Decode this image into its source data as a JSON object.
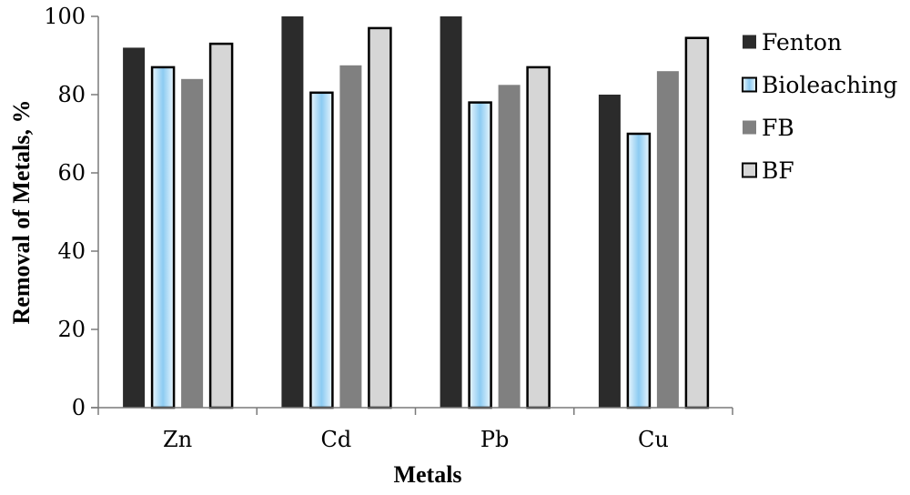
{
  "chart_data": {
    "type": "bar",
    "title": "",
    "xlabel": "Metals",
    "ylabel": "Removal of Metals, %",
    "categories": [
      "Zn",
      "Cd",
      "Pb",
      "Cu"
    ],
    "ylim": [
      0,
      100
    ],
    "yticks": [
      0,
      20,
      40,
      60,
      80,
      100
    ],
    "grid": false,
    "legend_position": "right",
    "series": [
      {
        "name": "Fenton",
        "values": [
          92,
          100,
          100,
          80
        ],
        "color": "#2b2b2b"
      },
      {
        "name": "Bioleaching",
        "values": [
          87,
          80.5,
          78,
          70
        ],
        "color": "#a9d6f5"
      },
      {
        "name": "FB",
        "values": [
          84,
          87.5,
          82.5,
          86
        ],
        "color": "#808080"
      },
      {
        "name": "BF",
        "values": [
          93,
          97,
          87,
          94.5
        ],
        "color": "#d6d6d6"
      }
    ]
  }
}
